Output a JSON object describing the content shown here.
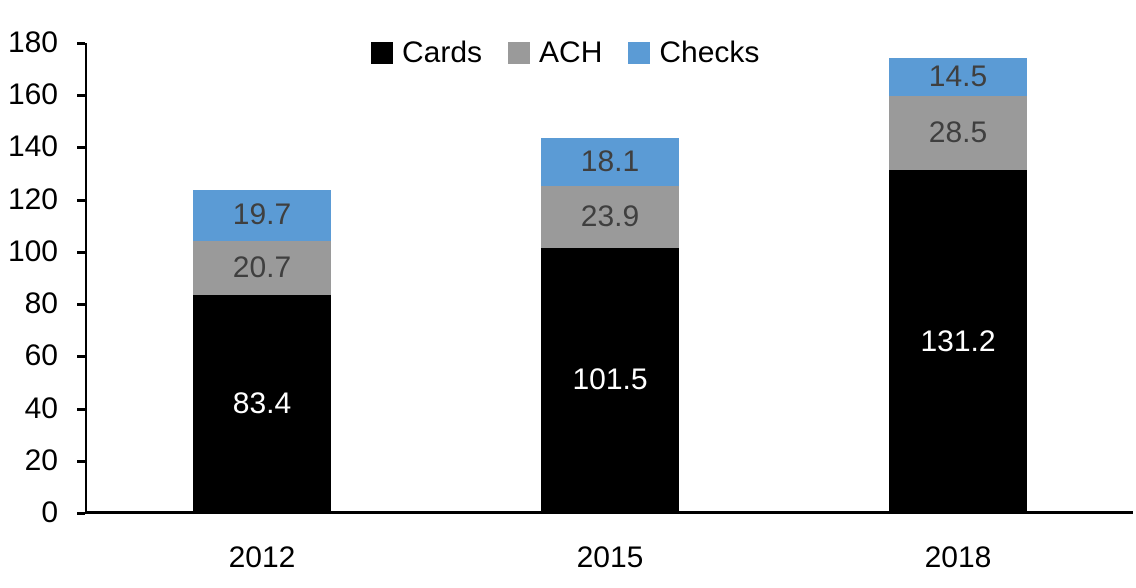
{
  "chart_data": {
    "type": "bar",
    "stacked": true,
    "title": "",
    "categories": [
      "2012",
      "2015",
      "2018"
    ],
    "series": [
      {
        "name": "Cards",
        "color": "#000000",
        "label_color": "#ffffff",
        "values": [
          83.4,
          101.5,
          131.2
        ]
      },
      {
        "name": "ACH",
        "color": "#9a9a9a",
        "label_color": "#3f3f3f",
        "values": [
          20.7,
          23.9,
          28.5
        ]
      },
      {
        "name": "Checks",
        "color": "#5b9bd5",
        "label_color": "#3f3f3f",
        "values": [
          19.7,
          18.1,
          14.5
        ]
      }
    ],
    "ylim": [
      0,
      180
    ],
    "ytick_interval": 20,
    "yticks": [
      0,
      20,
      40,
      60,
      80,
      100,
      120,
      140,
      160,
      180
    ],
    "grid": false,
    "legend_position": "top-center",
    "value_labels": "inside-center",
    "axis_color": "#000000"
  }
}
